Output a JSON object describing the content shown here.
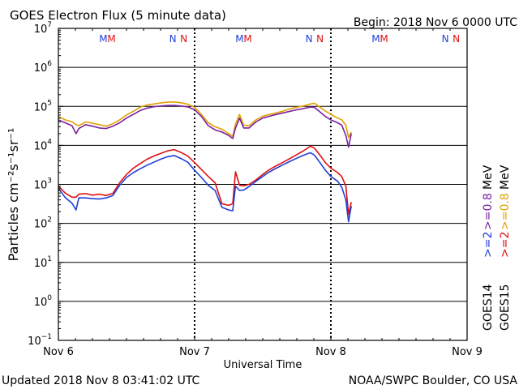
{
  "page": {
    "title": "GOES Electron Flux (5 minute data)",
    "begin": "Begin: 2018 Nov 6 0000 UTC",
    "updated": "Updated 2018 Nov  8 03:41:02 UTC",
    "credit": "NOAA/SWPC Boulder, CO USA"
  },
  "colors": {
    "goes14_gt2": "#1f3fd6",
    "goes15_gt2": "#e01010",
    "goes14_gt08": "#7a20a0",
    "goes15_gt08": "#e0a000",
    "threshold": "#000000"
  },
  "chart_data": {
    "type": "line",
    "title": "GOES Electron Flux (5 minute data)",
    "xlabel": "Universal Time",
    "ylabel": "Particles cm⁻²s⁻¹sr⁻¹",
    "y_scale": "log",
    "ylim": [
      0.1,
      10000000
    ],
    "xlim": [
      0,
      3
    ],
    "x_ticks": [
      {
        "day": 0,
        "label": "Nov 6"
      },
      {
        "day": 1,
        "label": "Nov 7"
      },
      {
        "day": 2,
        "label": "Nov 8"
      },
      {
        "day": 3,
        "label": "Nov 9"
      }
    ],
    "y_ticks": [
      {
        "base": "10",
        "exp": "7"
      },
      {
        "base": "10",
        "exp": "6"
      },
      {
        "base": "10",
        "exp": "5"
      },
      {
        "base": "10",
        "exp": "4"
      },
      {
        "base": "10",
        "exp": "3"
      },
      {
        "base": "10",
        "exp": "2"
      },
      {
        "base": "10",
        "exp": "1"
      },
      {
        "base": "10",
        "exp": "0"
      },
      {
        "base": "10",
        "exp": "−1"
      }
    ],
    "threshold": 1000,
    "markers": [
      {
        "letter": "M",
        "day": 0.33,
        "series": "goes14_gt2"
      },
      {
        "letter": "M",
        "day": 0.39,
        "series": "goes15_gt2"
      },
      {
        "letter": "N",
        "day": 0.84,
        "series": "goes14_gt2"
      },
      {
        "letter": "N",
        "day": 0.92,
        "series": "goes15_gt2"
      },
      {
        "letter": "M",
        "day": 1.33,
        "series": "goes14_gt2"
      },
      {
        "letter": "M",
        "day": 1.39,
        "series": "goes15_gt2"
      },
      {
        "letter": "N",
        "day": 1.84,
        "series": "goes14_gt2"
      },
      {
        "letter": "N",
        "day": 1.92,
        "series": "goes15_gt2"
      },
      {
        "letter": "M",
        "day": 2.33,
        "series": "goes14_gt2"
      },
      {
        "letter": "M",
        "day": 2.39,
        "series": "goes15_gt2"
      },
      {
        "letter": "N",
        "day": 2.84,
        "series": "goes14_gt2"
      },
      {
        "letter": "N",
        "day": 2.92,
        "series": "goes15_gt2"
      }
    ],
    "legend": {
      "satellites": [
        {
          "label": "GOES14",
          "color_key": "goes14_label"
        },
        {
          "label": "GOES15",
          "color_key": "goes15_label"
        }
      ],
      "entries": [
        {
          "label": ">=2",
          "series": "goes14_gt2",
          "column": 0
        },
        {
          "label": ">=0.8",
          "series": "goes14_gt08",
          "column": 0
        },
        {
          "label": "MeV",
          "series": "",
          "column": 0
        },
        {
          "label": ">=2",
          "series": "goes15_gt2",
          "column": 1
        },
        {
          "label": ">=0.8",
          "series": "goes15_gt08",
          "column": 1
        },
        {
          "label": "MeV",
          "series": "",
          "column": 1
        }
      ]
    },
    "series": [
      {
        "name": "GOES15 >=0.8 MeV",
        "key": "goes15_gt08",
        "points": [
          [
            0,
            55000
          ],
          [
            0.05,
            45000
          ],
          [
            0.1,
            40000
          ],
          [
            0.13,
            34000
          ],
          [
            0.15,
            32000
          ],
          [
            0.2,
            40000
          ],
          [
            0.25,
            37000
          ],
          [
            0.3,
            34000
          ],
          [
            0.35,
            31000
          ],
          [
            0.4,
            36000
          ],
          [
            0.45,
            45000
          ],
          [
            0.5,
            60000
          ],
          [
            0.55,
            75000
          ],
          [
            0.6,
            95000
          ],
          [
            0.65,
            108000
          ],
          [
            0.7,
            115000
          ],
          [
            0.75,
            122000
          ],
          [
            0.8,
            128000
          ],
          [
            0.85,
            130000
          ],
          [
            0.9,
            124000
          ],
          [
            0.95,
            113000
          ],
          [
            1.0,
            95000
          ],
          [
            1.05,
            62000
          ],
          [
            1.1,
            38000
          ],
          [
            1.15,
            30000
          ],
          [
            1.2,
            26000
          ],
          [
            1.25,
            20000
          ],
          [
            1.28,
            17000
          ],
          [
            1.3,
            35000
          ],
          [
            1.33,
            62000
          ],
          [
            1.36,
            33000
          ],
          [
            1.4,
            32000
          ],
          [
            1.45,
            45000
          ],
          [
            1.5,
            56000
          ],
          [
            1.55,
            62000
          ],
          [
            1.6,
            68000
          ],
          [
            1.65,
            76000
          ],
          [
            1.7,
            86000
          ],
          [
            1.75,
            95000
          ],
          [
            1.8,
            103000
          ],
          [
            1.85,
            115000
          ],
          [
            1.88,
            120000
          ],
          [
            1.92,
            95000
          ],
          [
            1.96,
            76000
          ],
          [
            2.0,
            62000
          ],
          [
            2.05,
            50000
          ],
          [
            2.08,
            45000
          ],
          [
            2.11,
            33000
          ],
          [
            2.13,
            16000
          ],
          [
            2.15,
            22000
          ]
        ]
      },
      {
        "name": "GOES14 >=0.8 MeV",
        "key": "goes14_gt08",
        "points": [
          [
            0,
            45000
          ],
          [
            0.05,
            38000
          ],
          [
            0.1,
            32000
          ],
          [
            0.13,
            20000
          ],
          [
            0.15,
            27000
          ],
          [
            0.2,
            34000
          ],
          [
            0.25,
            31000
          ],
          [
            0.3,
            28000
          ],
          [
            0.35,
            27000
          ],
          [
            0.4,
            31000
          ],
          [
            0.45,
            38000
          ],
          [
            0.5,
            50000
          ],
          [
            0.55,
            62000
          ],
          [
            0.6,
            78000
          ],
          [
            0.65,
            90000
          ],
          [
            0.7,
            98000
          ],
          [
            0.75,
            102000
          ],
          [
            0.8,
            105000
          ],
          [
            0.85,
            106000
          ],
          [
            0.9,
            102000
          ],
          [
            0.95,
            97000
          ],
          [
            1.0,
            82000
          ],
          [
            1.05,
            55000
          ],
          [
            1.1,
            32000
          ],
          [
            1.15,
            25000
          ],
          [
            1.2,
            22000
          ],
          [
            1.25,
            18000
          ],
          [
            1.28,
            15000
          ],
          [
            1.3,
            28000
          ],
          [
            1.33,
            50000
          ],
          [
            1.36,
            28000
          ],
          [
            1.4,
            28000
          ],
          [
            1.45,
            40000
          ],
          [
            1.5,
            50000
          ],
          [
            1.55,
            56000
          ],
          [
            1.6,
            62000
          ],
          [
            1.65,
            68000
          ],
          [
            1.7,
            75000
          ],
          [
            1.75,
            82000
          ],
          [
            1.8,
            88000
          ],
          [
            1.85,
            96000
          ],
          [
            1.88,
            94000
          ],
          [
            1.92,
            72000
          ],
          [
            1.96,
            55000
          ],
          [
            2.0,
            45000
          ],
          [
            2.05,
            38000
          ],
          [
            2.08,
            33000
          ],
          [
            2.11,
            18000
          ],
          [
            2.13,
            9000
          ],
          [
            2.15,
            20000
          ]
        ]
      },
      {
        "name": "GOES15 >=2 MeV",
        "key": "goes15_gt2",
        "points": [
          [
            0,
            900
          ],
          [
            0.05,
            600
          ],
          [
            0.1,
            470
          ],
          [
            0.13,
            470
          ],
          [
            0.15,
            560
          ],
          [
            0.2,
            580
          ],
          [
            0.25,
            530
          ],
          [
            0.3,
            560
          ],
          [
            0.35,
            520
          ],
          [
            0.4,
            590
          ],
          [
            0.45,
            1100
          ],
          [
            0.5,
            1800
          ],
          [
            0.55,
            2600
          ],
          [
            0.6,
            3400
          ],
          [
            0.65,
            4400
          ],
          [
            0.7,
            5300
          ],
          [
            0.75,
            6200
          ],
          [
            0.8,
            7200
          ],
          [
            0.85,
            7800
          ],
          [
            0.9,
            6600
          ],
          [
            0.95,
            5300
          ],
          [
            1.0,
            3600
          ],
          [
            1.05,
            2400
          ],
          [
            1.1,
            1600
          ],
          [
            1.15,
            1100
          ],
          [
            1.2,
            320
          ],
          [
            1.25,
            290
          ],
          [
            1.28,
            320
          ],
          [
            1.3,
            2100
          ],
          [
            1.33,
            950
          ],
          [
            1.36,
            920
          ],
          [
            1.4,
            1000
          ],
          [
            1.45,
            1300
          ],
          [
            1.5,
            1800
          ],
          [
            1.55,
            2400
          ],
          [
            1.6,
            3000
          ],
          [
            1.65,
            3700
          ],
          [
            1.7,
            4600
          ],
          [
            1.75,
            5800
          ],
          [
            1.8,
            7300
          ],
          [
            1.85,
            9500
          ],
          [
            1.88,
            8500
          ],
          [
            1.92,
            5600
          ],
          [
            1.96,
            3600
          ],
          [
            2.0,
            2600
          ],
          [
            2.05,
            2000
          ],
          [
            2.08,
            1600
          ],
          [
            2.11,
            900
          ],
          [
            2.13,
            170
          ],
          [
            2.15,
            350
          ]
        ]
      },
      {
        "name": "GOES14 >=2 MeV",
        "key": "goes14_gt2",
        "points": [
          [
            0,
            800
          ],
          [
            0.05,
            460
          ],
          [
            0.1,
            330
          ],
          [
            0.13,
            220
          ],
          [
            0.15,
            450
          ],
          [
            0.2,
            450
          ],
          [
            0.25,
            430
          ],
          [
            0.3,
            420
          ],
          [
            0.35,
            450
          ],
          [
            0.4,
            520
          ],
          [
            0.45,
            950
          ],
          [
            0.5,
            1500
          ],
          [
            0.55,
            2000
          ],
          [
            0.6,
            2500
          ],
          [
            0.65,
            3100
          ],
          [
            0.7,
            3700
          ],
          [
            0.75,
            4400
          ],
          [
            0.8,
            5100
          ],
          [
            0.85,
            5500
          ],
          [
            0.9,
            4600
          ],
          [
            0.95,
            3700
          ],
          [
            1.0,
            2300
          ],
          [
            1.05,
            1500
          ],
          [
            1.1,
            950
          ],
          [
            1.15,
            700
          ],
          [
            1.2,
            260
          ],
          [
            1.25,
            220
          ],
          [
            1.28,
            210
          ],
          [
            1.3,
            900
          ],
          [
            1.33,
            700
          ],
          [
            1.36,
            720
          ],
          [
            1.4,
            880
          ],
          [
            1.45,
            1200
          ],
          [
            1.5,
            1600
          ],
          [
            1.55,
            2100
          ],
          [
            1.6,
            2600
          ],
          [
            1.65,
            3200
          ],
          [
            1.7,
            3900
          ],
          [
            1.75,
            4700
          ],
          [
            1.8,
            5600
          ],
          [
            1.85,
            6500
          ],
          [
            1.88,
            5600
          ],
          [
            1.92,
            3600
          ],
          [
            1.96,
            2300
          ],
          [
            2.0,
            1600
          ],
          [
            2.05,
            1200
          ],
          [
            2.08,
            850
          ],
          [
            2.11,
            400
          ],
          [
            2.13,
            110
          ],
          [
            2.15,
            280
          ]
        ]
      }
    ]
  }
}
